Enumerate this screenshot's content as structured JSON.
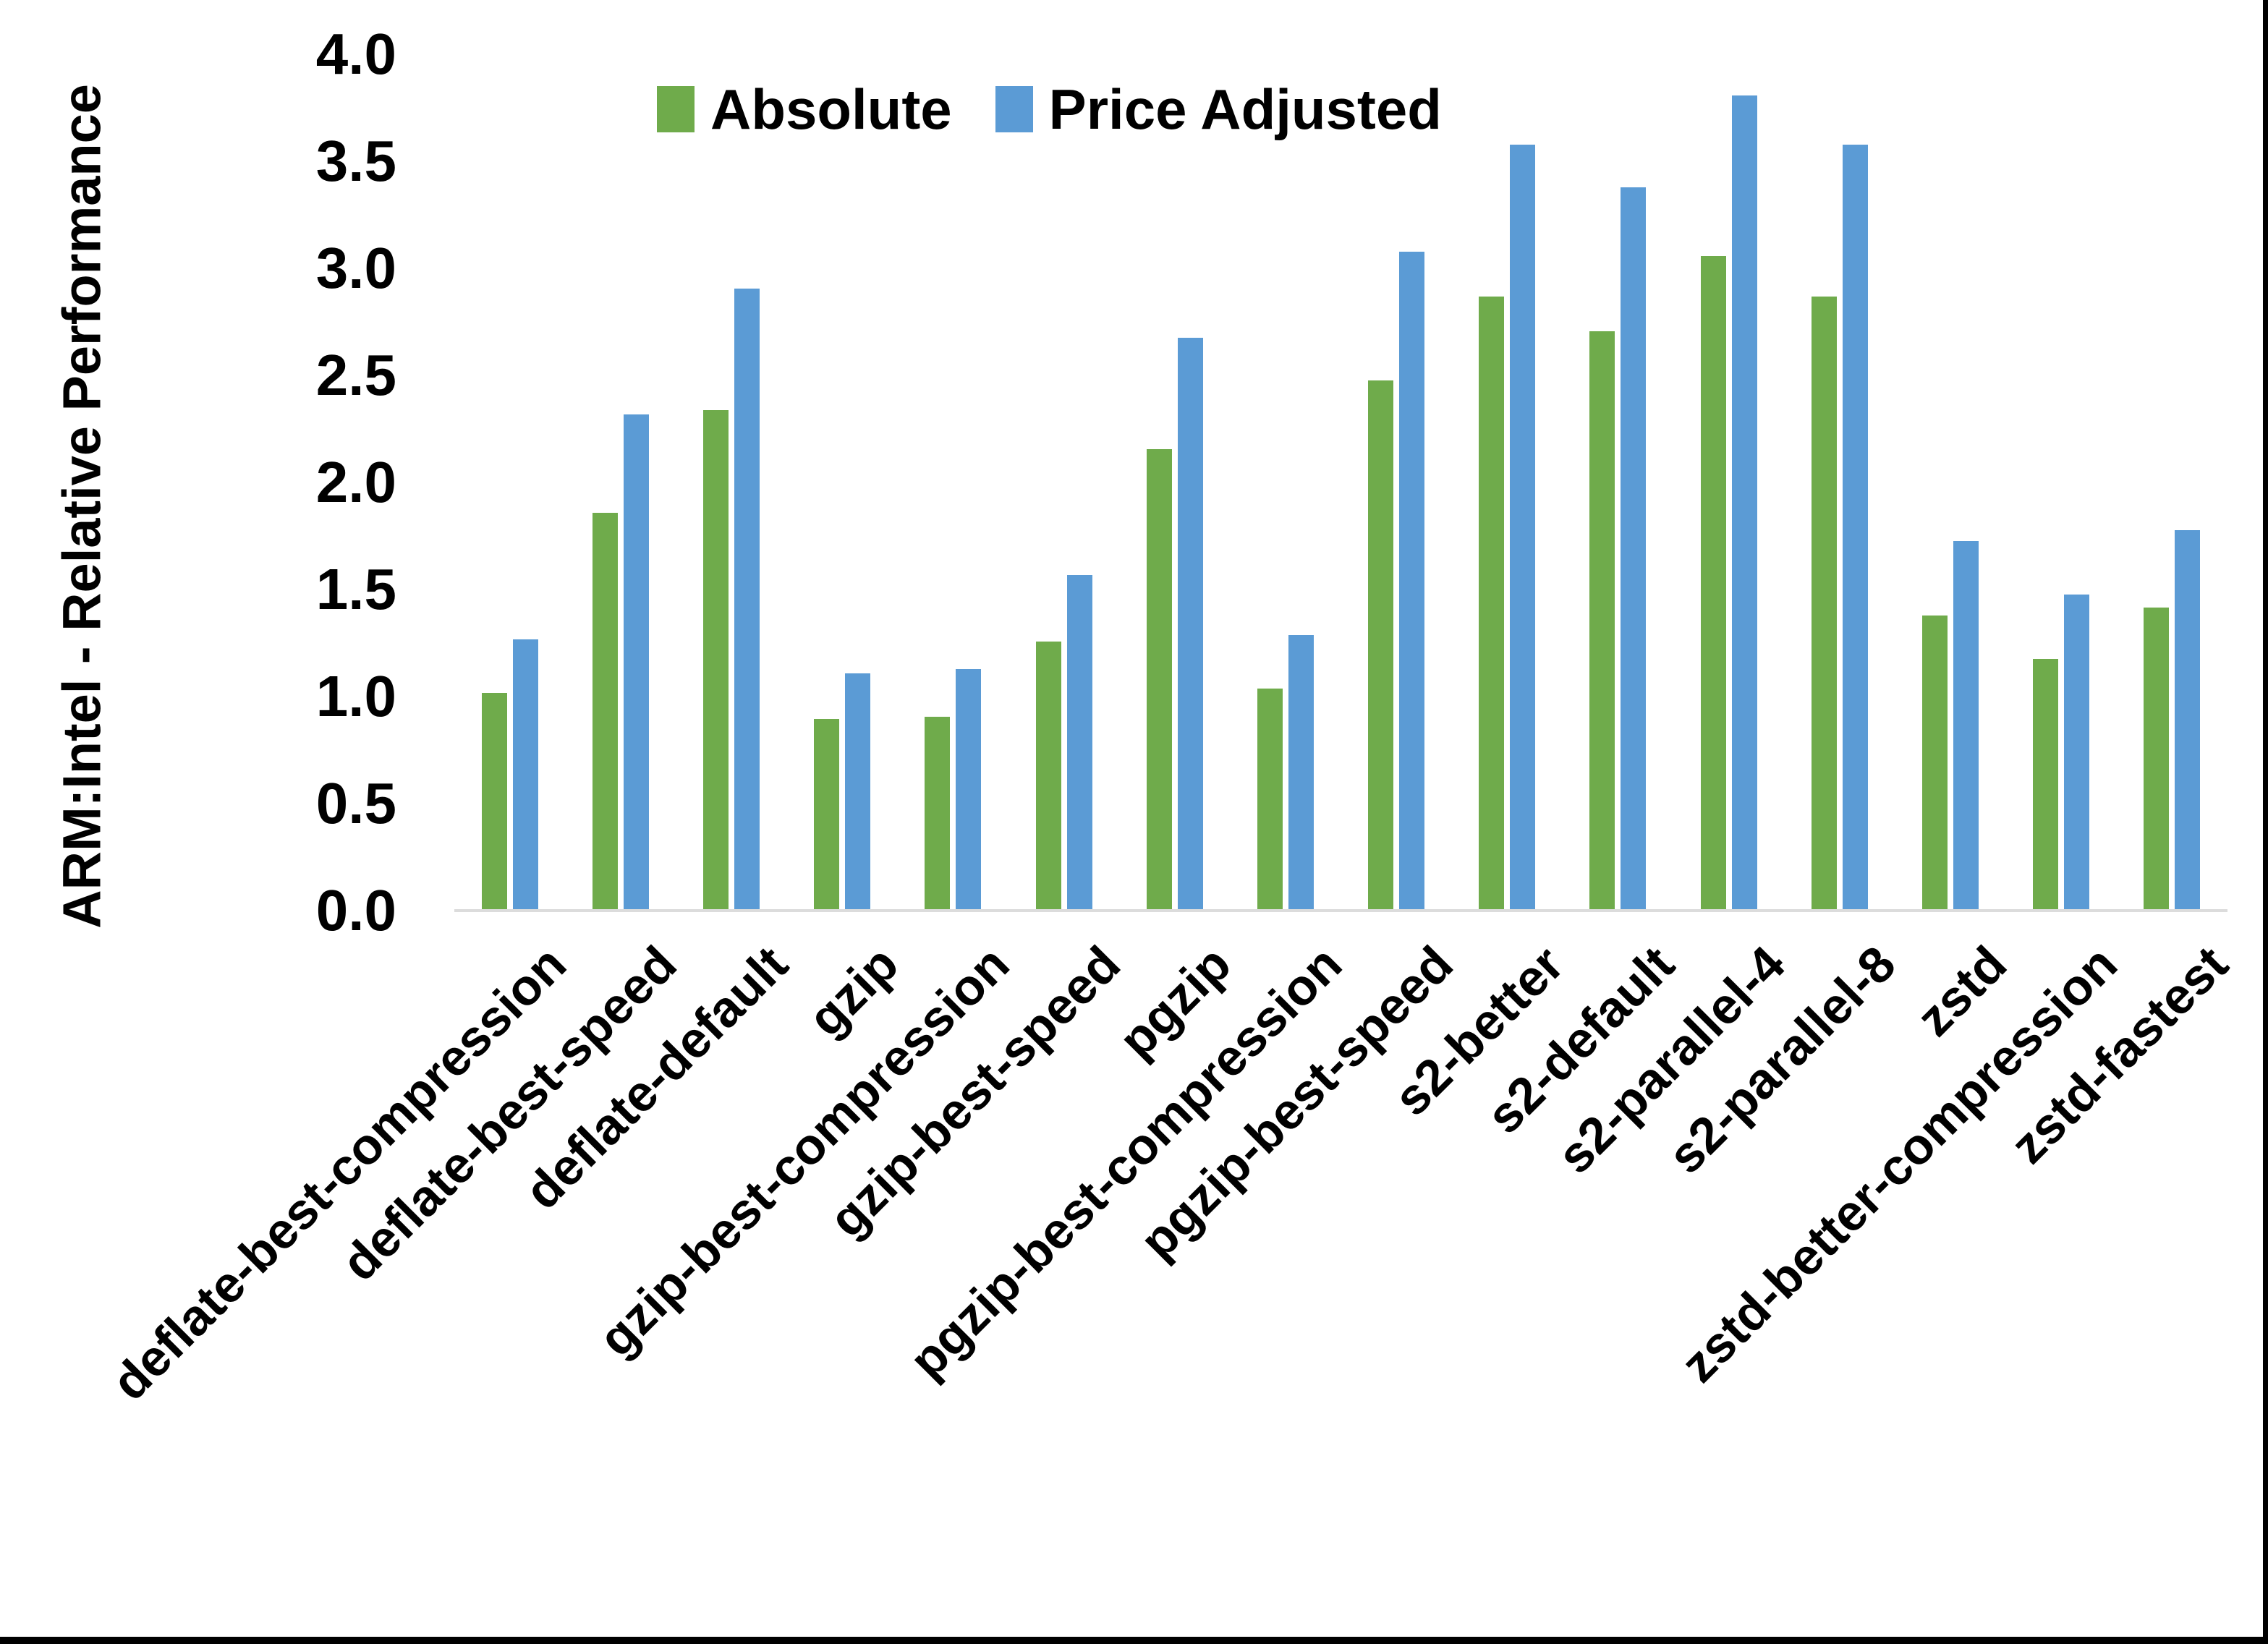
{
  "page": {
    "background": "#ffffff",
    "frame_border_color": "#000000"
  },
  "y_axis": {
    "title": "ARM:Intel - Relative Performance",
    "tick_labels": [
      "4.0",
      "3.5",
      "3.0",
      "2.5",
      "2.0",
      "1.5",
      "1.0",
      "0.5",
      "0.0"
    ],
    "axis_line_color": "#dcdcdc"
  },
  "legend": {
    "items": [
      {
        "label": "Absolute",
        "color": "#6FAB4B"
      },
      {
        "label": "Price Adjusted",
        "color": "#5B9BD5"
      }
    ]
  },
  "chart_data": {
    "type": "bar",
    "title": "",
    "xlabel": "",
    "ylabel": "ARM:Intel - Relative Performance",
    "ylim": [
      0.0,
      4.0
    ],
    "ytick_step": 0.5,
    "grid": false,
    "legend_position": "top-center",
    "categories": [
      "deflate-best-compression",
      "deflate-best-speed",
      "deflate-default",
      "gzip",
      "gzip-best-compression",
      "gzip-best-speed",
      "pgzip",
      "pgzip-best-compression",
      "pgzip-best-speed",
      "s2-better",
      "s2-default",
      "s2-parallel-4",
      "s2-parallel-8",
      "zstd",
      "zstd-better-compression",
      "zstd-fastest"
    ],
    "series": [
      {
        "name": "Absolute",
        "color": "#6FAB4B",
        "values": [
          1.01,
          1.85,
          2.33,
          0.89,
          0.9,
          1.25,
          2.15,
          1.03,
          2.47,
          2.86,
          2.7,
          3.05,
          2.86,
          1.37,
          1.17,
          1.41
        ]
      },
      {
        "name": "Price Adjusted",
        "color": "#5B9BD5",
        "values": [
          1.26,
          2.31,
          2.9,
          1.1,
          1.12,
          1.56,
          2.67,
          1.28,
          3.07,
          3.57,
          3.37,
          3.8,
          3.57,
          1.72,
          1.47,
          1.77
        ]
      }
    ]
  }
}
